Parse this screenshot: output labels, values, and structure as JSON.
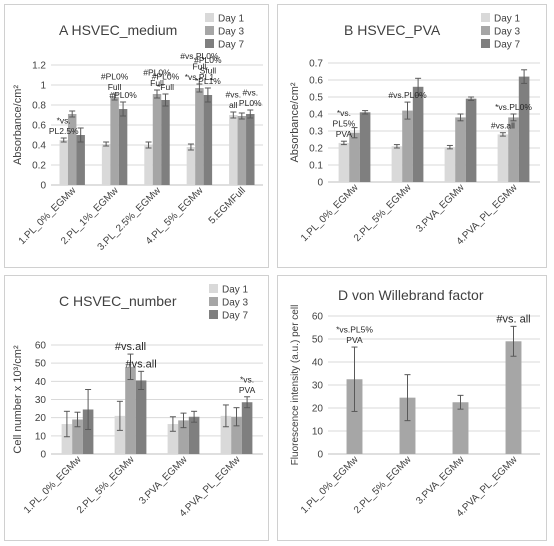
{
  "colors": {
    "day1": "#d9d9d9",
    "day3": "#a6a6a6",
    "day7": "#7f7f7f",
    "single": "#a6a6a6",
    "grid": "#d9d9d9",
    "axis": "#bfbfbf",
    "text": "#404040"
  },
  "chart_data": [
    {
      "type": "bar",
      "title": "A  HSVEC_medium",
      "ylabel": "Absorbance/cm²",
      "ylim": [
        0,
        1.2
      ],
      "yticks": [
        "0",
        "0.2",
        "0.4",
        "0.6",
        "0.8",
        "1",
        "1.2"
      ],
      "grid": true,
      "legend": "top-right",
      "categories": [
        "1.PL_0%_EGMw",
        "2.PL_1%_EGMw",
        "3.PL_2.5%_EGMw",
        "4.PL_5%_EGMw",
        "5.EGMFull"
      ],
      "series": [
        {
          "name": "Day 1",
          "values": [
            0.45,
            0.41,
            0.4,
            0.38,
            0.7
          ],
          "errors": [
            0.02,
            0.02,
            0.03,
            0.03,
            0.03
          ]
        },
        {
          "name": "Day 3",
          "values": [
            0.71,
            0.88,
            0.91,
            0.97,
            0.69
          ],
          "errors": [
            0.03,
            0.03,
            0.04,
            0.04,
            0.03
          ]
        },
        {
          "name": "Day 7",
          "values": [
            0.5,
            0.76,
            0.85,
            0.9,
            0.71
          ],
          "errors": [
            0.07,
            0.07,
            0.06,
            0.07,
            0.04
          ]
        }
      ],
      "annotations": [
        {
          "group": 0,
          "series": 0,
          "lines": [
            "*vs.",
            "PL2.5%"
          ]
        },
        {
          "group": 1,
          "series": 1,
          "lines": [
            "#PL0%",
            "Full"
          ]
        },
        {
          "group": 1,
          "series": 2,
          "lines": [
            "#PL0%"
          ]
        },
        {
          "group": 2,
          "series": 1,
          "lines": [
            "#PL0%",
            "Full"
          ]
        },
        {
          "group": 2,
          "series": 2,
          "lines": [
            "#PL0%",
            "*Full"
          ]
        },
        {
          "group": 3,
          "series": 1,
          "lines": [
            "#vs.PL0%",
            "Full",
            "*vs.PL1"
          ]
        },
        {
          "group": 3,
          "series": 2,
          "lines": [
            "#PL0%",
            "Sfull",
            "*PL1%"
          ]
        },
        {
          "group": 4,
          "series": 0,
          "lines": [
            "#vs.",
            "all"
          ]
        },
        {
          "group": 4,
          "series": 2,
          "lines": [
            "#vs.",
            "PL0%"
          ]
        }
      ]
    },
    {
      "type": "bar",
      "title": "B  HSVEC_PVA",
      "ylabel": "Absorbance/cm²",
      "ylim": [
        0,
        0.7
      ],
      "yticks": [
        "0",
        "0.1",
        "0.2",
        "0.3",
        "0.4",
        "0.5",
        "0.6",
        "0.7"
      ],
      "grid": true,
      "legend": "top-right",
      "categories": [
        "1.PL_0%_EGMw",
        "2.PL_5%_EGMw",
        "3.PVA_EGMw",
        "4.PVA_PL_EGMw"
      ],
      "series": [
        {
          "name": "Day 1",
          "values": [
            0.23,
            0.21,
            0.205,
            0.28
          ],
          "errors": [
            0.01,
            0.01,
            0.01,
            0.01
          ]
        },
        {
          "name": "Day 3",
          "values": [
            0.29,
            0.42,
            0.38,
            0.38
          ],
          "errors": [
            0.03,
            0.05,
            0.02,
            0.02
          ]
        },
        {
          "name": "Day 7",
          "values": [
            0.41,
            0.56,
            0.49,
            0.62
          ],
          "errors": [
            0.01,
            0.05,
            0.01,
            0.04
          ]
        }
      ],
      "annotations": [
        {
          "group": 0,
          "series": 0,
          "lines": [
            "*vs.",
            "PL5%",
            "PVA"
          ]
        },
        {
          "group": 1,
          "series": 1,
          "lines": [
            "#vs.PL0%"
          ]
        },
        {
          "group": 3,
          "series": 0,
          "lines": [
            "#vs.all"
          ]
        },
        {
          "group": 3,
          "series": 1,
          "lines": [
            "*vs.PL0%"
          ]
        }
      ]
    },
    {
      "type": "bar",
      "title": "C  HSVEC_number",
      "ylabel": "Cell number x 10³/cm²",
      "ylim": [
        0,
        60
      ],
      "yticks": [
        "0",
        "10",
        "20",
        "30",
        "40",
        "50",
        "60"
      ],
      "grid": true,
      "legend": "top-right",
      "categories": [
        "1.PL_0%_EGMw",
        "2.PL_5%_EGMw",
        "3.PVA_EGMw",
        "4.PVA_PL_EGMw"
      ],
      "series": [
        {
          "name": "Day 1",
          "values": [
            16.5,
            21,
            16.5,
            21
          ],
          "errors": [
            7,
            8,
            4,
            6
          ]
        },
        {
          "name": "Day 3",
          "values": [
            19,
            48,
            18.5,
            20.5
          ],
          "errors": [
            4,
            7,
            4,
            5
          ]
        },
        {
          "name": "Day 7",
          "values": [
            24.5,
            40.5,
            20.5,
            28.5
          ],
          "errors": [
            11,
            5,
            3,
            3
          ]
        }
      ],
      "annotations": [
        {
          "group": 1,
          "series": 1,
          "lines": [
            "#vs.all"
          ],
          "big": true
        },
        {
          "group": 1,
          "series": 2,
          "lines": [
            "#vs.all"
          ],
          "big": true
        },
        {
          "group": 3,
          "series": 2,
          "lines": [
            "*vs.",
            "PVA"
          ]
        }
      ]
    },
    {
      "type": "bar",
      "title": "D  von Willebrand factor",
      "ylabel": "Fluorescence intensity (a.u.) per cell",
      "ylim": [
        0,
        60
      ],
      "yticks": [
        "0",
        "10",
        "20",
        "30",
        "40",
        "50",
        "60"
      ],
      "grid": true,
      "categories": [
        "1.PL_0%_EGMw",
        "2.PL_5%_EGMw",
        "3.PVA_EGMw",
        "4.PVA_PL_EGMw"
      ],
      "series": [
        {
          "values": [
            32.5,
            24.5,
            22.5,
            49
          ],
          "errors": [
            14,
            10,
            3,
            6.5
          ]
        }
      ],
      "annotations": [
        {
          "group": 0,
          "series": 0,
          "lines": [
            "*vs.PL5%",
            "PVA"
          ]
        },
        {
          "group": 3,
          "series": 0,
          "lines": [
            "#vs. all"
          ],
          "big": true
        }
      ]
    }
  ]
}
